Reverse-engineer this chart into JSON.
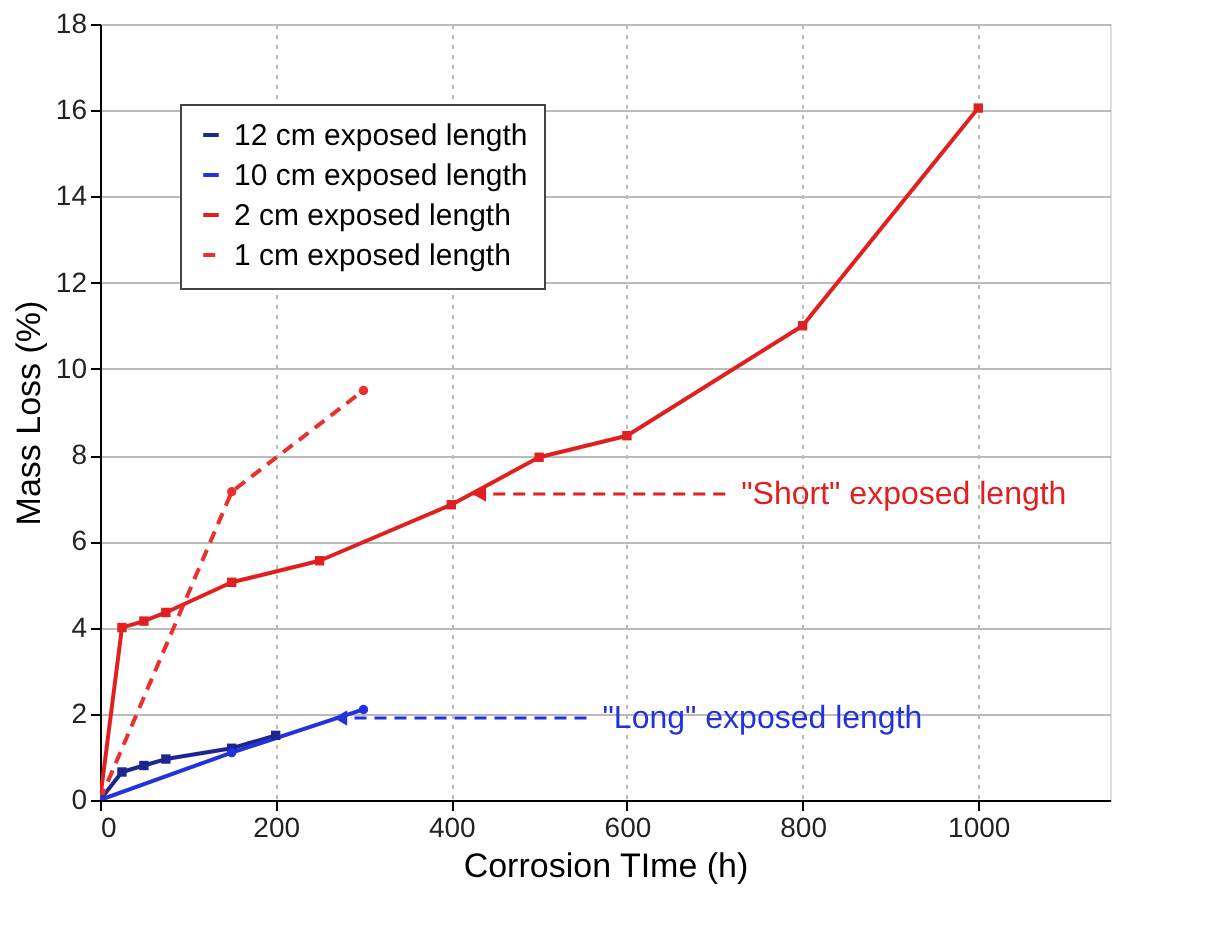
{
  "chart_data": {
    "type": "line",
    "xlabel": "Corrosion TIme (h)",
    "ylabel": "Mass Loss (%)",
    "xlim": [
      0,
      1150
    ],
    "xticks": [
      0,
      200,
      400,
      600,
      800,
      {
        "value": 1000,
        "label": "1000"
      }
    ],
    "ylim": [
      0,
      18
    ],
    "yticks": [
      0,
      2,
      4,
      6,
      8,
      10,
      12,
      14,
      16,
      18
    ],
    "grid": true,
    "legend": "top left",
    "series": [
      {
        "name": "12 cm exposed length",
        "color": "#1c2590",
        "marker": "square",
        "line_style": "solid",
        "x": [
          0,
          25,
          50,
          75,
          150,
          200
        ],
        "values": [
          0,
          0.65,
          0.8,
          0.95,
          1.2,
          1.5
        ]
      },
      {
        "name": "10 cm exposed length",
        "color": "#2233dd",
        "marker": "circle",
        "line_style": "solid",
        "x": [
          0,
          150,
          300
        ],
        "values": [
          0,
          1.1,
          2.1
        ]
      },
      {
        "name": "2 cm exposed length",
        "color": "#e02020",
        "marker": "square",
        "line_style": "solid",
        "x": [
          0,
          25,
          50,
          75,
          150,
          250,
          400,
          500,
          600,
          800,
          1000
        ],
        "values": [
          0,
          4.0,
          4.15,
          4.35,
          5.05,
          5.55,
          6.85,
          7.95,
          8.45,
          11.0,
          16.05
        ]
      },
      {
        "name": "1 cm exposed length",
        "color": "#e8302c",
        "marker": "circle",
        "line_style": "dashed",
        "x": [
          0,
          150,
          300
        ],
        "values": [
          0,
          7.15,
          9.5
        ]
      }
    ],
    "annotations": [
      {
        "text": "\"Short\" exposed length",
        "x": 425,
        "y": 7.1
      },
      {
        "text": "\"Long\" exposed length",
        "x": 267,
        "y": 1.9
      }
    ]
  }
}
